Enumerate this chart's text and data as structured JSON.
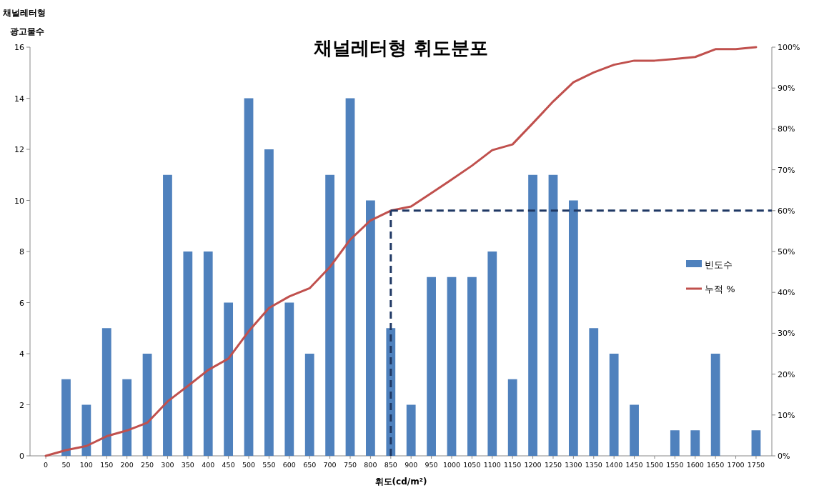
{
  "chart_data": {
    "type": "bar",
    "title": "채널레터형 휘도분포",
    "xlabel": "휘도(cd/m²)",
    "ylabel": "채널레터형\n광고물수",
    "categories": [
      "0",
      "50",
      "100",
      "150",
      "200",
      "250",
      "300",
      "350",
      "400",
      "450",
      "500",
      "550",
      "600",
      "650",
      "700",
      "750",
      "800",
      "850",
      "900",
      "950",
      "1000",
      "1050",
      "1100",
      "1150",
      "1200",
      "1250",
      "1300",
      "1350",
      "1400",
      "1450",
      "1500",
      "1550",
      "1600",
      "1650",
      "1700",
      "1750"
    ],
    "series": [
      {
        "name": "빈도수",
        "color": "#4f81bd",
        "values": [
          0,
          3,
          2,
          5,
          3,
          4,
          11,
          8,
          8,
          6,
          14,
          12,
          6,
          4,
          11,
          14,
          10,
          5,
          2,
          7,
          7,
          7,
          8,
          3,
          11,
          11,
          10,
          5,
          4,
          2,
          0,
          1,
          1,
          4,
          0,
          1
        ]
      },
      {
        "name": "누적 %",
        "type": "line",
        "axis": "y2",
        "color": "#c0504d",
        "values": [
          0,
          1.4,
          2.4,
          4.8,
          6.2,
          8.1,
          13.3,
          17.1,
          21,
          23.8,
          30.5,
          36.2,
          39,
          41,
          46.2,
          52.9,
          57.6,
          60,
          61,
          64.3,
          67.6,
          71,
          74.8,
          76.2,
          81.4,
          86.7,
          91.4,
          93.8,
          95.7,
          96.7,
          96.7,
          97.1,
          97.6,
          99.5,
          99.5,
          100
        ]
      }
    ],
    "ylim": [
      0,
      16
    ],
    "yticks": [
      0,
      2,
      4,
      6,
      8,
      10,
      12,
      14,
      16
    ],
    "y2lim": [
      0,
      100
    ],
    "y2ticks": [
      {
        "value": 0,
        "label": "0%"
      },
      {
        "value": 10,
        "label": "10%"
      },
      {
        "value": 20,
        "label": "20%"
      },
      {
        "value": 30,
        "label": "30%"
      },
      {
        "value": 40,
        "label": "40%"
      },
      {
        "value": 50,
        "label": "50%"
      },
      {
        "value": 60,
        "label": "60%"
      },
      {
        "value": 70,
        "label": "70%"
      },
      {
        "value": 80,
        "label": "80%"
      },
      {
        "value": 90,
        "label": "90%"
      },
      {
        "value": 100,
        "label": "100%"
      }
    ],
    "ref_lines": [
      {
        "axis": "x",
        "value": "850",
        "color": "#1f3864",
        "line_style": "dashed"
      },
      {
        "axis": "y2",
        "value": 60,
        "color": "#1f3864",
        "line_style": "dashed"
      }
    ],
    "legend": "right",
    "grid": false
  }
}
